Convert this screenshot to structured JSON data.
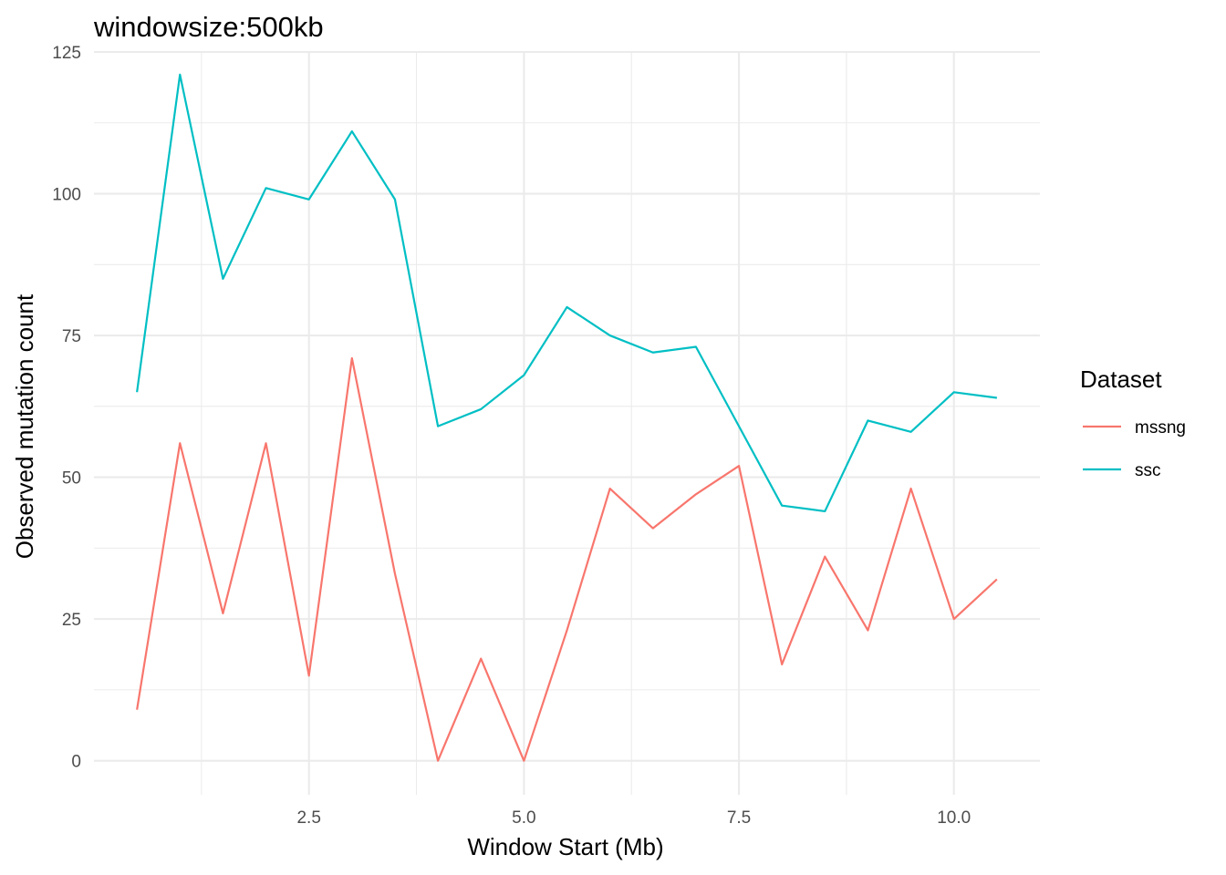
{
  "chart_data": {
    "type": "line",
    "title": "windowsize:500kb",
    "xlabel": "Window Start (Mb)",
    "ylabel": "Observed mutation count",
    "xlim": [
      0.0,
      11.0
    ],
    "ylim": [
      -6,
      125
    ],
    "x_ticks": [
      2.5,
      5.0,
      7.5,
      10.0
    ],
    "x_tick_labels": [
      "2.5",
      "5.0",
      "7.5",
      "10.0"
    ],
    "x_minor_ticks": [
      1.25,
      3.75,
      6.25,
      8.75
    ],
    "y_ticks": [
      0,
      25,
      50,
      75,
      100,
      125
    ],
    "y_tick_labels": [
      "0",
      "25",
      "50",
      "75",
      "100",
      "125"
    ],
    "y_minor_ticks": [
      12.5,
      37.5,
      62.5,
      87.5,
      112.5
    ],
    "grid": true,
    "legend": {
      "title": "Dataset",
      "position": "right"
    },
    "x": [
      0.5,
      1.0,
      1.5,
      2.0,
      2.5,
      3.0,
      3.5,
      4.0,
      4.5,
      5.0,
      5.5,
      6.0,
      6.5,
      7.0,
      7.5,
      8.0,
      8.5,
      9.0,
      9.5,
      10.0,
      10.5
    ],
    "series": [
      {
        "name": "mssng",
        "color": "#F8766D",
        "values": [
          9,
          56,
          26,
          56,
          15,
          71,
          33,
          0,
          18,
          0,
          23,
          48,
          41,
          47,
          52,
          17,
          36,
          23,
          48,
          25,
          32
        ]
      },
      {
        "name": "ssc",
        "color": "#00BFC4",
        "values": [
          65,
          121,
          85,
          101,
          99,
          111,
          99,
          59,
          62,
          68,
          80,
          75,
          72,
          73,
          59,
          45,
          44,
          60,
          58,
          65,
          64
        ]
      }
    ]
  }
}
